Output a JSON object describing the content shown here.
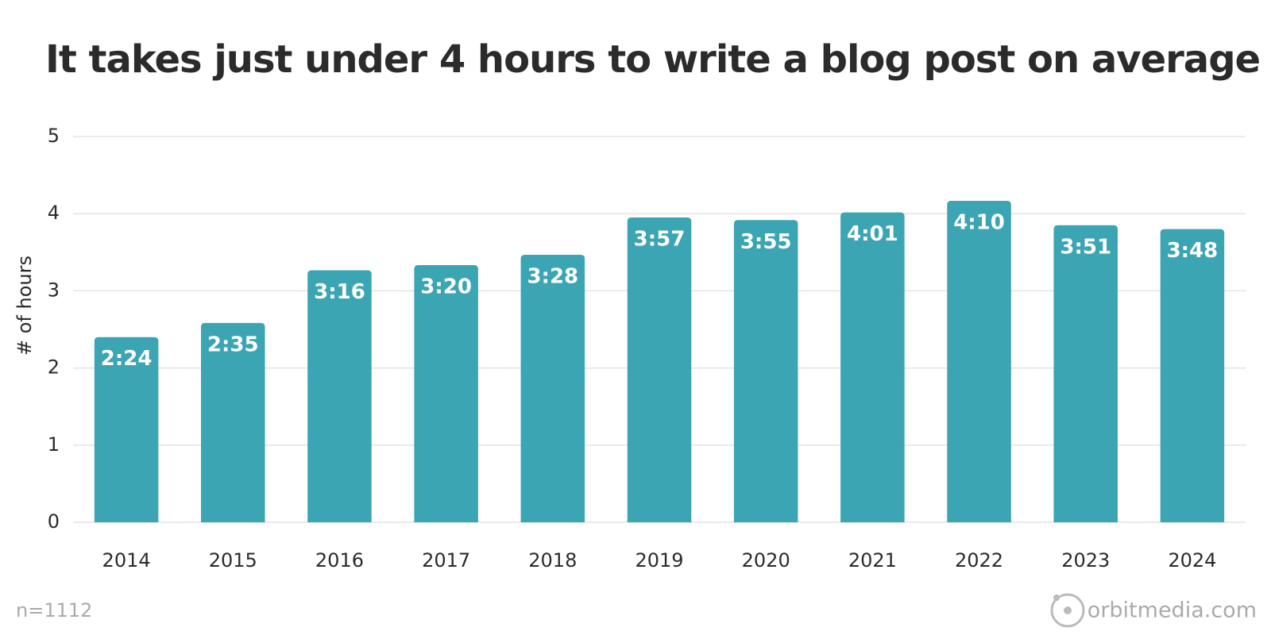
{
  "chart_data": {
    "type": "bar",
    "title": "It takes just under 4 hours to write a blog post on average",
    "y_label": "# of hours",
    "categories": [
      "2014",
      "2015",
      "2016",
      "2017",
      "2018",
      "2019",
      "2020",
      "2021",
      "2022",
      "2023",
      "2024"
    ],
    "values": [
      2.4,
      2.5833,
      3.2667,
      3.3333,
      3.4667,
      3.95,
      3.9167,
      4.0167,
      4.1667,
      3.85,
      3.8
    ],
    "value_labels": [
      "2:24",
      "2:35",
      "3:16",
      "3:20",
      "3:28",
      "3:57",
      "3:55",
      "4:01",
      "4:10",
      "3:51",
      "3:48"
    ],
    "color": "#3ba5b3",
    "ylim": [
      0,
      5
    ],
    "yticks": [
      0,
      1,
      2,
      3,
      4,
      5
    ],
    "grid": true,
    "note": "n=1112",
    "source": "orbitmedia.com"
  }
}
